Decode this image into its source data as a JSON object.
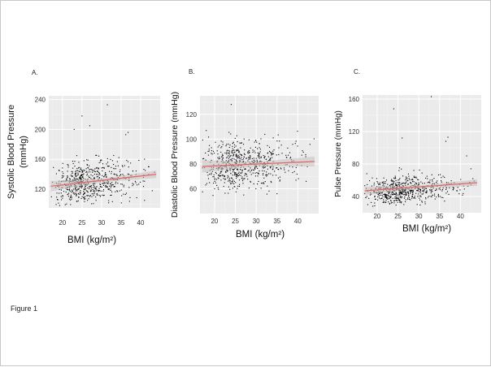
{
  "figure": {
    "caption": "Figure 1"
  },
  "style": {
    "panel_bg": "#ebebeb",
    "grid_major": "#ffffff",
    "point_color": "#000000",
    "fit_line": "#e06666",
    "ci_band": "#c9c0c0"
  },
  "chart_data": [
    {
      "type": "scatter",
      "panel_label": "A.",
      "xlabel": "BMI (kg/m²)",
      "ylabel_lines": [
        "Systolic Blood Pressure",
        "(mmHg)"
      ],
      "xlim": [
        16.5,
        45
      ],
      "ylim": [
        95,
        245
      ],
      "xticks": [
        20,
        25,
        30,
        35,
        40
      ],
      "yticks": [
        120,
        160,
        200,
        240
      ],
      "cloud": {
        "n": 620,
        "x_center": 26,
        "x_sd": 4.3,
        "y_center": 128,
        "y_sd": 14,
        "x_min": 17,
        "x_max": 44,
        "y_min": 98,
        "y_max": 190,
        "x_skew": 0.6
      },
      "outliers": [
        [
          25,
          218
        ],
        [
          31.5,
          233
        ],
        [
          27,
          205
        ],
        [
          36.8,
          196
        ],
        [
          36.2,
          193
        ],
        [
          23,
          200
        ],
        [
          20,
          108
        ],
        [
          42,
          150
        ],
        [
          43,
          118
        ],
        [
          41,
          105
        ]
      ],
      "fit": {
        "x0": 17,
        "y0": 124,
        "x1": 44,
        "y1": 140,
        "band_start": 7,
        "band_mid": 2.5,
        "band_end": 5
      }
    },
    {
      "type": "scatter",
      "panel_label": "B.",
      "xlabel": "BMI (kg/m²)",
      "ylabel_lines": [
        "Diastolic Blood Pressure (mmHg)"
      ],
      "xlim": [
        16.5,
        45
      ],
      "ylim": [
        40,
        135
      ],
      "xticks": [
        20,
        25,
        30,
        35,
        40
      ],
      "yticks": [
        60,
        80,
        100,
        120
      ],
      "cloud": {
        "n": 620,
        "x_center": 26,
        "x_sd": 4.3,
        "y_center": 80,
        "y_sd": 10,
        "x_min": 17,
        "x_max": 44,
        "y_min": 52,
        "y_max": 108,
        "x_skew": 0.6
      },
      "outliers": [
        [
          24,
          128
        ],
        [
          18,
          107
        ],
        [
          42,
          66
        ],
        [
          20,
          60
        ],
        [
          27,
          55
        ],
        [
          35,
          56
        ]
      ],
      "fit": {
        "x0": 17,
        "y0": 78,
        "x1": 44,
        "y1": 82,
        "band_start": 5,
        "band_mid": 1.8,
        "band_end": 4
      }
    },
    {
      "type": "scatter",
      "panel_label": "C.",
      "xlabel": "BMI (kg/m²)",
      "ylabel_lines": [
        "Pulse Pressure (mmHg)"
      ],
      "xlim": [
        16.5,
        45
      ],
      "ylim": [
        20,
        165
      ],
      "xticks": [
        20,
        25,
        30,
        35,
        40
      ],
      "yticks": [
        40,
        80,
        120,
        160
      ],
      "cloud": {
        "n": 620,
        "x_center": 26,
        "x_sd": 4.3,
        "y_center": 47,
        "y_sd": 9,
        "x_min": 17,
        "x_max": 44,
        "y_min": 28,
        "y_max": 100,
        "x_skew": 0.6
      },
      "outliers": [
        [
          24,
          148
        ],
        [
          33,
          163
        ],
        [
          37,
          113
        ],
        [
          36.5,
          108
        ],
        [
          41.5,
          90
        ],
        [
          43,
          62
        ],
        [
          26,
          112
        ]
      ],
      "fit": {
        "x0": 17,
        "y0": 47,
        "x1": 44,
        "y1": 57,
        "band_start": 5,
        "band_mid": 2,
        "band_end": 4
      }
    }
  ]
}
